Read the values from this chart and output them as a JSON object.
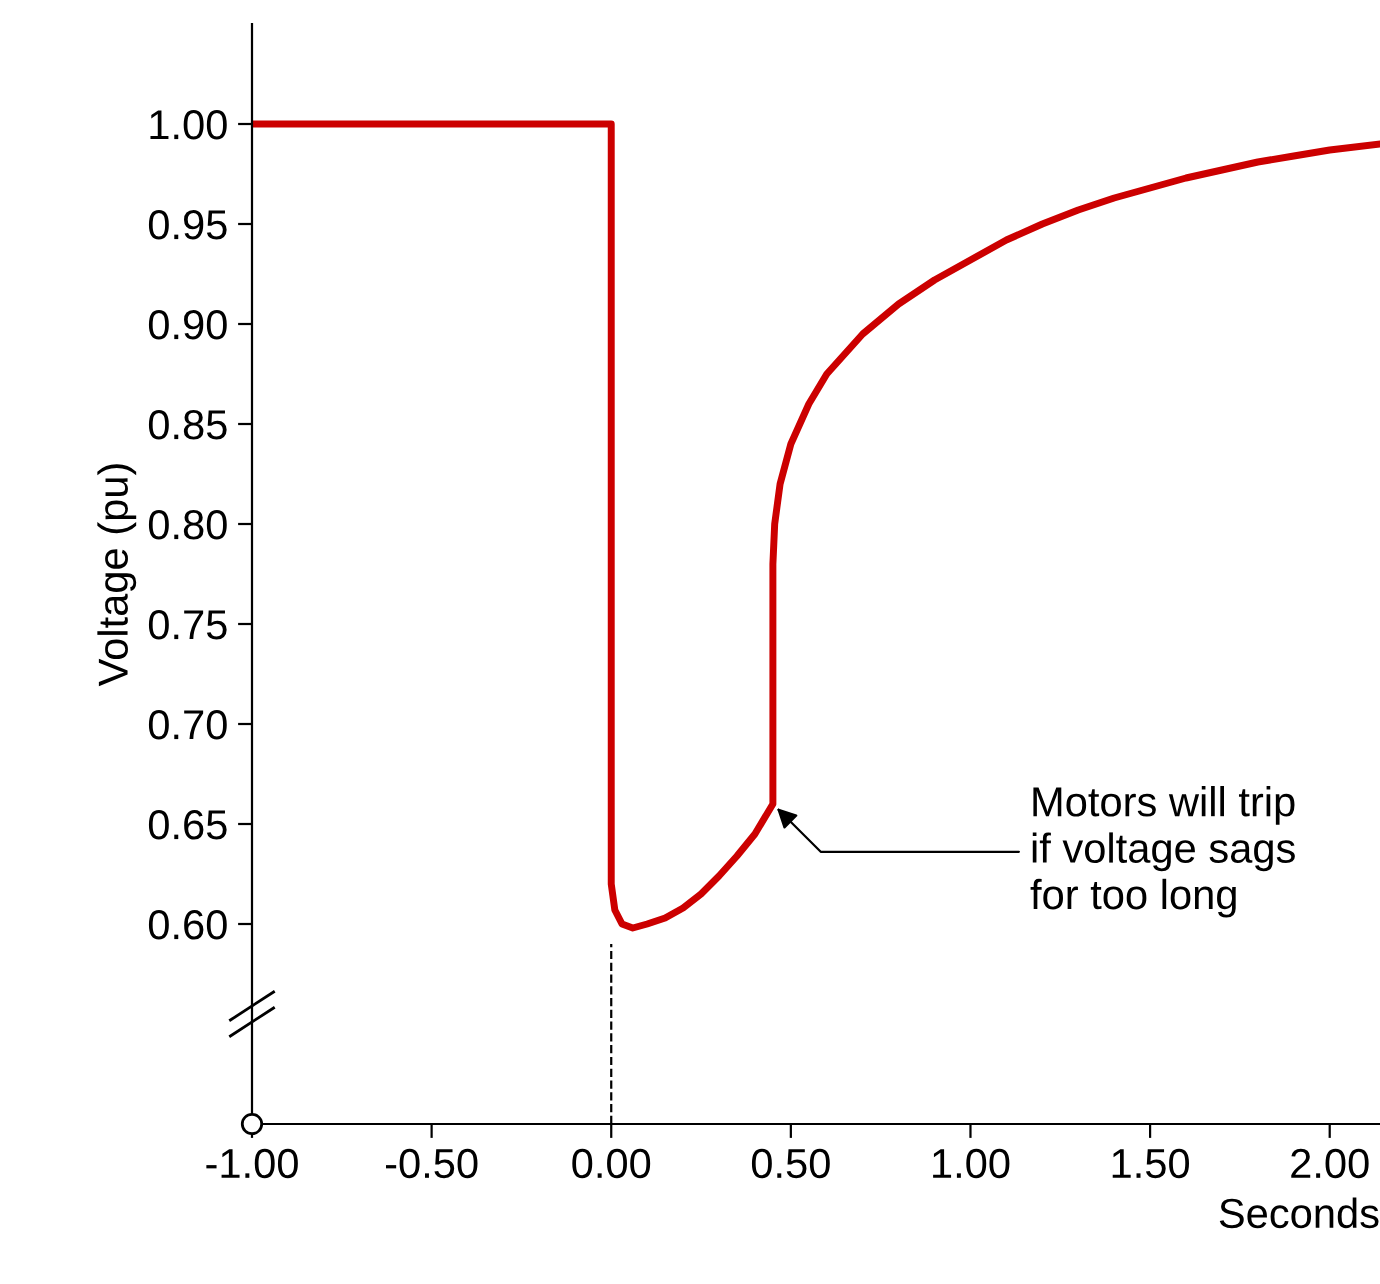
{
  "chart_data": {
    "type": "line",
    "xlabel": "Seconds",
    "ylabel": "Voltage (pu)",
    "series": [
      {
        "color": "#cc0000",
        "x": [
          -1.0,
          0.0,
          0.0,
          0.01,
          0.03,
          0.06,
          0.1,
          0.15,
          0.2,
          0.25,
          0.3,
          0.35,
          0.4,
          0.45,
          0.45,
          0.455,
          0.47,
          0.5,
          0.55,
          0.6,
          0.7,
          0.8,
          0.9,
          1.0,
          1.1,
          1.2,
          1.3,
          1.4,
          1.5,
          1.6,
          1.7,
          1.8,
          1.9,
          2.0,
          2.14
        ],
        "values": [
          1.0,
          1.0,
          0.62,
          0.607,
          0.6,
          0.598,
          0.6,
          0.603,
          0.608,
          0.615,
          0.624,
          0.634,
          0.645,
          0.66,
          0.78,
          0.8,
          0.82,
          0.84,
          0.86,
          0.875,
          0.895,
          0.91,
          0.922,
          0.932,
          0.942,
          0.95,
          0.957,
          0.963,
          0.968,
          0.973,
          0.977,
          0.981,
          0.984,
          0.987,
          0.99
        ]
      }
    ],
    "xlim": [
      -1.0,
      2.14
    ],
    "ylim": [
      0.5,
      1.05
    ],
    "xticks": [
      {
        "value": -1.0,
        "label": "-1.00"
      },
      {
        "value": -0.5,
        "label": "-0.50"
      },
      {
        "value": 0.0,
        "label": "0.00"
      },
      {
        "value": 0.5,
        "label": "0.50"
      },
      {
        "value": 1.0,
        "label": "1.00"
      },
      {
        "value": 1.5,
        "label": "1.50"
      },
      {
        "value": 2.0,
        "label": "2.00"
      }
    ],
    "yticks": [
      {
        "value": 0.6,
        "label": "0.60"
      },
      {
        "value": 0.65,
        "label": "0.65"
      },
      {
        "value": 0.7,
        "label": "0.70"
      },
      {
        "value": 0.75,
        "label": "0.75"
      },
      {
        "value": 0.8,
        "label": "0.80"
      },
      {
        "value": 0.85,
        "label": "0.85"
      },
      {
        "value": 0.9,
        "label": "0.90"
      },
      {
        "value": 0.95,
        "label": "0.95"
      },
      {
        "value": 1.0,
        "label": "1.00"
      }
    ],
    "ref_lines": [
      {
        "axis": "x",
        "value": 0.0,
        "color": "#000000",
        "line_style": "dashed"
      }
    ],
    "annotations": [
      {
        "text": "Motors will trip\nif voltage sags\nfor too long",
        "x": 0.45,
        "y": 0.66
      }
    ],
    "grid": false,
    "marker": "none",
    "line_style": "solid"
  }
}
